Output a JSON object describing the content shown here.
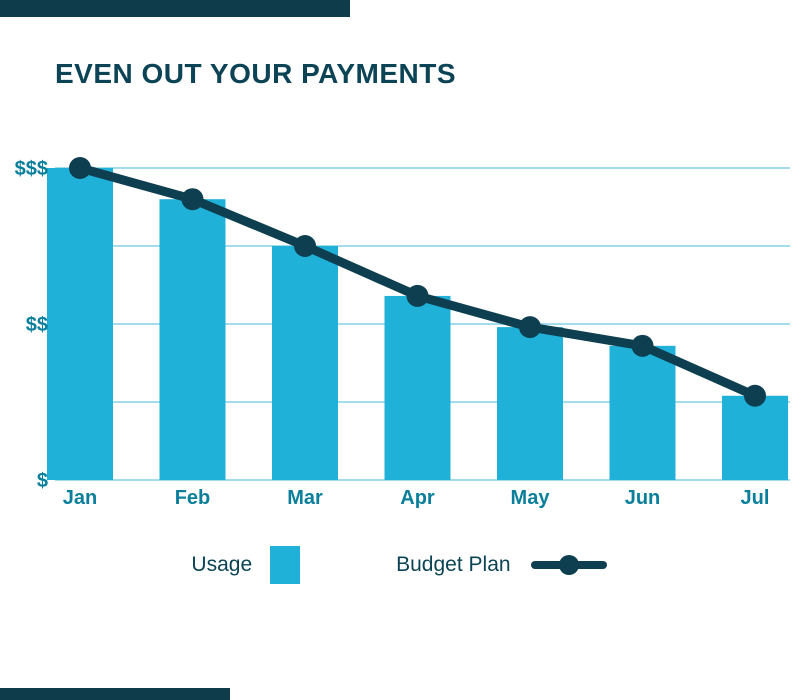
{
  "page": {
    "title": "EVEN OUT YOUR PAYMENTS"
  },
  "colors": {
    "bar": "#20b1d9",
    "line": "#0e3f50",
    "grid": "#a3dced",
    "axis_text": "#0a7f9b",
    "title_text": "#0c4456",
    "accent_dark": "#0e3c4b"
  },
  "chart_data": {
    "type": "bar",
    "title": "EVEN OUT YOUR PAYMENTS",
    "categories": [
      "Jan",
      "Feb",
      "Mar",
      "Apr",
      "May",
      "Jun",
      "Jul"
    ],
    "series": [
      {
        "name": "Usage",
        "type": "bar",
        "values": [
          100,
          90,
          75,
          59,
          49,
          43,
          27
        ]
      },
      {
        "name": "Budget Plan",
        "type": "line",
        "values": [
          100,
          90,
          75,
          59,
          49,
          43,
          27
        ]
      }
    ],
    "xlabel": "",
    "ylabel": "",
    "ylim": [
      0,
      100
    ],
    "gridline_values": [
      0,
      25,
      50,
      75,
      100
    ],
    "ytick_values": [
      0,
      50,
      100
    ],
    "ytick_labels": [
      "$",
      "$$",
      "$$$"
    ],
    "grid": "horizontal",
    "legend_position": "bottom"
  },
  "legend": {
    "usage_label": "Usage",
    "budget_label": "Budget Plan"
  }
}
